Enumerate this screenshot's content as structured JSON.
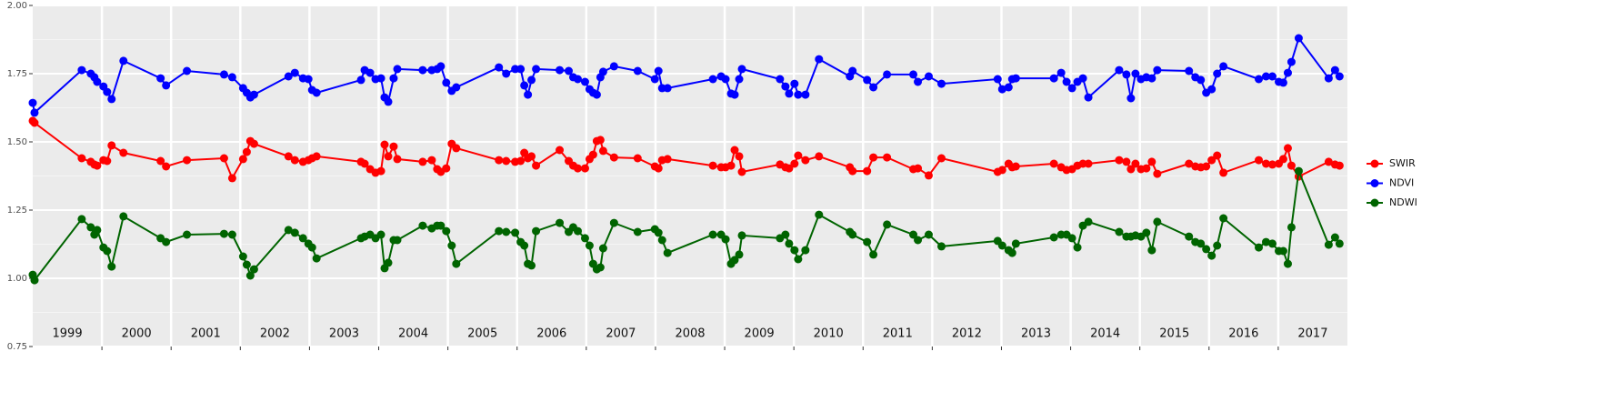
{
  "chart_data": {
    "type": "line",
    "x": [
      1999.0,
      1999.026,
      1999.708,
      1999.839,
      1999.891,
      1999.931,
      2000.022,
      2000.075,
      2000.14,
      2000.311,
      2000.848,
      2000.927,
      2001.228,
      2001.765,
      2001.883,
      2002.04,
      2002.093,
      2002.145,
      2002.198,
      2002.696,
      2002.788,
      2002.906,
      2002.984,
      2003.037,
      2003.102,
      2003.744,
      2003.797,
      2003.876,
      2003.954,
      2004.033,
      2004.085,
      2004.138,
      2004.216,
      2004.269,
      2004.636,
      2004.767,
      2004.845,
      2004.898,
      2004.976,
      2005.055,
      2005.121,
      2005.737,
      2005.842,
      2005.972,
      2006.051,
      2006.104,
      2006.156,
      2006.208,
      2006.274,
      2006.615,
      2006.746,
      2006.811,
      2006.877,
      2006.982,
      2007.047,
      2007.099,
      2007.152,
      2007.204,
      2007.244,
      2007.401,
      2007.742,
      2007.991,
      2008.043,
      2008.096,
      2008.174,
      2008.83,
      2008.948,
      2009.013,
      2009.092,
      2009.144,
      2009.21,
      2009.249,
      2009.799,
      2009.878,
      2009.931,
      2010.009,
      2010.062,
      2010.167,
      2010.363,
      2010.809,
      2010.848,
      2011.058,
      2011.149,
      2011.346,
      2011.726,
      2011.792,
      2011.949,
      2012.133,
      2012.945,
      2013.011,
      2013.103,
      2013.155,
      2013.208,
      2013.758,
      2013.863,
      2013.941,
      2014.02,
      2014.098,
      2014.177,
      2014.256,
      2014.701,
      2014.806,
      2014.871,
      2014.937,
      2015.016,
      2015.094,
      2015.173,
      2015.252,
      2015.71,
      2015.802,
      2015.881,
      2015.959,
      2016.038,
      2016.117,
      2016.208,
      2016.719,
      2016.824,
      2016.916,
      2017.008,
      2017.073,
      2017.139,
      2017.191,
      2017.296,
      2017.729,
      2017.821,
      2017.886
    ],
    "series": [
      {
        "name": "SWIR",
        "color": "#ff0000",
        "values": [
          1.577,
          1.57,
          1.44,
          1.427,
          1.417,
          1.413,
          1.433,
          1.43,
          1.487,
          1.46,
          1.43,
          1.41,
          1.433,
          1.44,
          1.367,
          1.437,
          1.463,
          1.503,
          1.493,
          1.447,
          1.433,
          1.427,
          1.433,
          1.44,
          1.447,
          1.427,
          1.42,
          1.4,
          1.387,
          1.393,
          1.49,
          1.447,
          1.483,
          1.437,
          1.427,
          1.433,
          1.4,
          1.39,
          1.403,
          1.493,
          1.477,
          1.433,
          1.43,
          1.427,
          1.43,
          1.46,
          1.44,
          1.447,
          1.413,
          1.47,
          1.43,
          1.413,
          1.403,
          1.403,
          1.437,
          1.453,
          1.503,
          1.507,
          1.467,
          1.443,
          1.44,
          1.41,
          1.403,
          1.433,
          1.437,
          1.413,
          1.407,
          1.407,
          1.413,
          1.47,
          1.447,
          1.39,
          1.417,
          1.407,
          1.403,
          1.42,
          1.45,
          1.433,
          1.447,
          1.407,
          1.393,
          1.393,
          1.443,
          1.443,
          1.4,
          1.403,
          1.377,
          1.44,
          1.39,
          1.397,
          1.42,
          1.407,
          1.41,
          1.42,
          1.407,
          1.397,
          1.4,
          1.413,
          1.42,
          1.42,
          1.433,
          1.427,
          1.4,
          1.42,
          1.4,
          1.403,
          1.427,
          1.383,
          1.42,
          1.41,
          1.407,
          1.41,
          1.433,
          1.45,
          1.387,
          1.433,
          1.42,
          1.417,
          1.42,
          1.437,
          1.477,
          1.413,
          1.373,
          1.427,
          1.417,
          1.413
        ]
      },
      {
        "name": "NDVI",
        "color": "#0000ff",
        "values": [
          1.643,
          1.607,
          1.763,
          1.75,
          1.737,
          1.72,
          1.703,
          1.683,
          1.657,
          1.797,
          1.733,
          1.707,
          1.76,
          1.747,
          1.737,
          1.697,
          1.68,
          1.663,
          1.673,
          1.74,
          1.753,
          1.733,
          1.73,
          1.69,
          1.68,
          1.727,
          1.763,
          1.753,
          1.73,
          1.733,
          1.663,
          1.647,
          1.733,
          1.767,
          1.763,
          1.763,
          1.767,
          1.777,
          1.717,
          1.687,
          1.7,
          1.773,
          1.75,
          1.767,
          1.767,
          1.707,
          1.673,
          1.727,
          1.767,
          1.763,
          1.76,
          1.737,
          1.73,
          1.72,
          1.693,
          1.68,
          1.673,
          1.737,
          1.757,
          1.777,
          1.76,
          1.73,
          1.76,
          1.697,
          1.697,
          1.73,
          1.74,
          1.73,
          1.677,
          1.673,
          1.73,
          1.767,
          1.73,
          1.703,
          1.677,
          1.713,
          1.673,
          1.673,
          1.803,
          1.74,
          1.76,
          1.727,
          1.7,
          1.747,
          1.747,
          1.72,
          1.74,
          1.713,
          1.73,
          1.693,
          1.7,
          1.73,
          1.733,
          1.733,
          1.753,
          1.72,
          1.697,
          1.72,
          1.733,
          1.663,
          1.763,
          1.747,
          1.66,
          1.75,
          1.73,
          1.737,
          1.733,
          1.763,
          1.76,
          1.737,
          1.727,
          1.68,
          1.693,
          1.75,
          1.777,
          1.73,
          1.74,
          1.74,
          1.72,
          1.717,
          1.753,
          1.793,
          1.88,
          1.733,
          1.763,
          1.74
        ]
      },
      {
        "name": "NDWI",
        "color": "#006400",
        "values": [
          1.013,
          0.993,
          1.217,
          1.187,
          1.16,
          1.177,
          1.113,
          1.1,
          1.043,
          1.227,
          1.147,
          1.133,
          1.16,
          1.163,
          1.16,
          1.08,
          1.05,
          1.01,
          1.033,
          1.177,
          1.167,
          1.147,
          1.127,
          1.113,
          1.073,
          1.147,
          1.153,
          1.16,
          1.147,
          1.16,
          1.037,
          1.057,
          1.14,
          1.14,
          1.193,
          1.183,
          1.193,
          1.193,
          1.173,
          1.12,
          1.053,
          1.173,
          1.17,
          1.167,
          1.133,
          1.12,
          1.053,
          1.047,
          1.173,
          1.203,
          1.17,
          1.187,
          1.173,
          1.147,
          1.12,
          1.053,
          1.033,
          1.04,
          1.11,
          1.203,
          1.17,
          1.18,
          1.167,
          1.14,
          1.093,
          1.16,
          1.16,
          1.143,
          1.053,
          1.067,
          1.087,
          1.157,
          1.147,
          1.16,
          1.127,
          1.103,
          1.07,
          1.103,
          1.233,
          1.17,
          1.16,
          1.133,
          1.087,
          1.197,
          1.16,
          1.14,
          1.16,
          1.117,
          1.137,
          1.12,
          1.103,
          1.093,
          1.127,
          1.15,
          1.16,
          1.16,
          1.147,
          1.113,
          1.193,
          1.207,
          1.17,
          1.153,
          1.153,
          1.157,
          1.153,
          1.167,
          1.103,
          1.207,
          1.153,
          1.133,
          1.127,
          1.107,
          1.083,
          1.12,
          1.22,
          1.113,
          1.133,
          1.127,
          1.1,
          1.1,
          1.053,
          1.187,
          1.393,
          1.123,
          1.15,
          1.127
        ]
      }
    ],
    "year_labels": [
      "1999",
      "2000",
      "2001",
      "2002",
      "2003",
      "2004",
      "2005",
      "2006",
      "2007",
      "2008",
      "2009",
      "2010",
      "2011",
      "2012",
      "2013",
      "2014",
      "2015",
      "2016",
      "2017"
    ],
    "xlim": [
      1999,
      2018
    ],
    "xticks": [
      2000,
      2001,
      2002,
      2003,
      2004,
      2005,
      2006,
      2007,
      2008,
      2009,
      2010,
      2011,
      2012,
      2013,
      2014,
      2015,
      2016,
      2017
    ],
    "ylim": [
      0.75,
      2.0
    ],
    "yticks": [
      0.75,
      {
        "value": 1.0,
        "label": "1.00"
      },
      1.25,
      {
        "value": 1.5,
        "label": "1.50"
      },
      1.75,
      {
        "value": 2.0,
        "label": "2.00"
      }
    ],
    "grid": true,
    "legend": "right"
  }
}
